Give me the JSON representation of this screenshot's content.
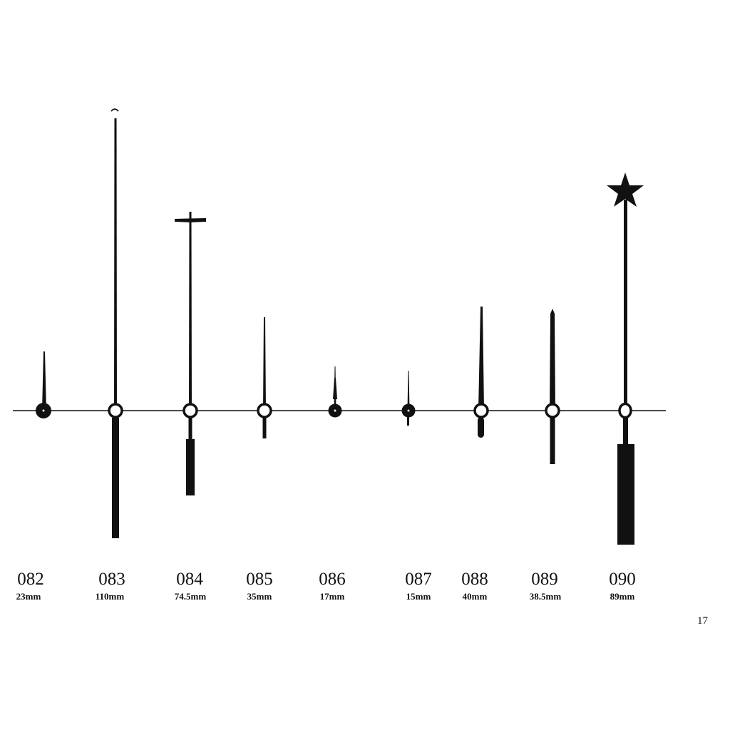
{
  "catalog": {
    "hands": [
      {
        "code": "082",
        "length": "23mm"
      },
      {
        "code": "083",
        "length": "110mm"
      },
      {
        "code": "084",
        "length": "74.5mm"
      },
      {
        "code": "085",
        "length": "35mm"
      },
      {
        "code": "086",
        "length": "17mm"
      },
      {
        "code": "087",
        "length": "15mm"
      },
      {
        "code": "088",
        "length": "40mm"
      },
      {
        "code": "089",
        "length": "38.5mm"
      },
      {
        "code": "090",
        "length": "89mm"
      }
    ],
    "page_number": "17",
    "ink_color": "#111111"
  }
}
